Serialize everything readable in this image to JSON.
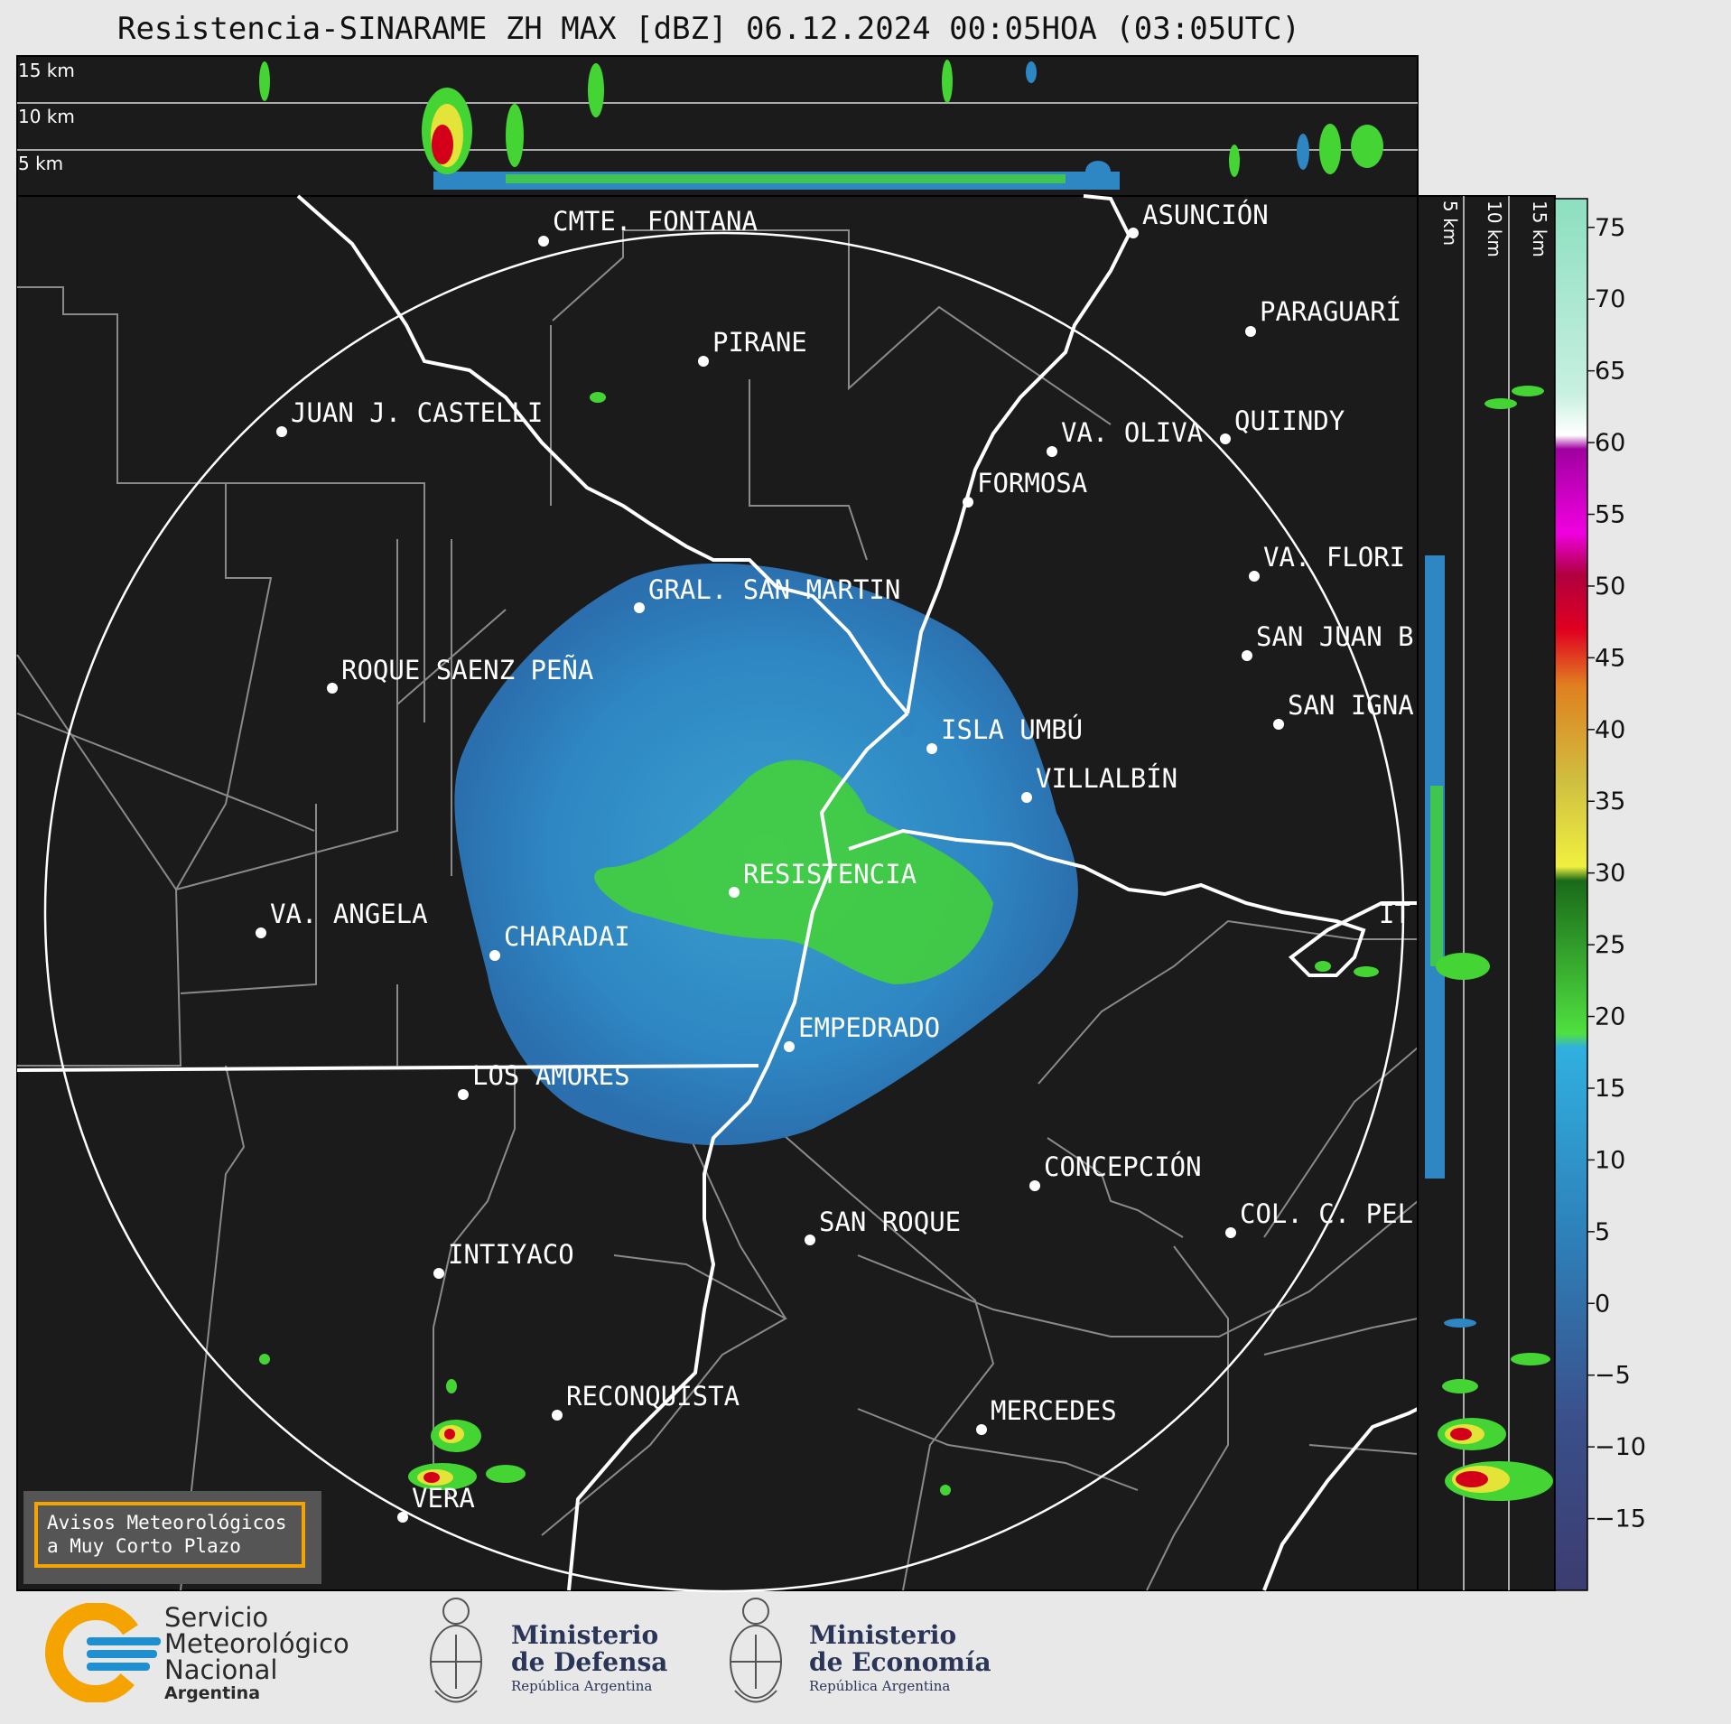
{
  "title": "Resistencia-SINARAME ZH MAX [dBZ] 06.12.2024 00:05HOA (03:05UTC)",
  "top_profile": {
    "altitude_labels": [
      "15 km",
      "10 km",
      "5 km"
    ]
  },
  "side_profile": {
    "altitude_labels": [
      "5 km",
      "10 km",
      "15 km"
    ]
  },
  "colorbar": {
    "unit": "dBZ",
    "ticks": [
      "75",
      "70",
      "65",
      "60",
      "55",
      "50",
      "45",
      "40",
      "35",
      "30",
      "25",
      "20",
      "15",
      "10",
      "5",
      "0",
      "−5",
      "−10",
      "−15"
    ],
    "range": [
      -20,
      77
    ]
  },
  "cities": [
    {
      "name": "CMTE. FONTANA"
    },
    {
      "name": "ASUNCIÓN"
    },
    {
      "name": "PARAGUARÍ"
    },
    {
      "name": "PIRANE"
    },
    {
      "name": "JUAN J. CASTELLI"
    },
    {
      "name": "VA. OLIVA"
    },
    {
      "name": "QUIINDY"
    },
    {
      "name": "FORMOSA"
    },
    {
      "name": "VA. FLORI"
    },
    {
      "name": "GRAL. SAN MARTIN"
    },
    {
      "name": "SAN JUAN B"
    },
    {
      "name": "ROQUE SAENZ PEÑA"
    },
    {
      "name": "SAN IGNA"
    },
    {
      "name": "ISLA UMBÚ"
    },
    {
      "name": "VILLALBÍN"
    },
    {
      "name": "RESISTENCIA"
    },
    {
      "name": "IT"
    },
    {
      "name": "VA. ANGELA"
    },
    {
      "name": "CHARADAI"
    },
    {
      "name": "EMPEDRADO"
    },
    {
      "name": "LOS AMORES"
    },
    {
      "name": "CONCEPCIÓN"
    },
    {
      "name": "SAN ROQUE"
    },
    {
      "name": "COL. C. PEL"
    },
    {
      "name": "INTIYACO"
    },
    {
      "name": "RECONQUISTA"
    },
    {
      "name": "MERCEDES"
    },
    {
      "name": "VERA"
    }
  ],
  "notice": {
    "line1": "Avisos Meteorológicos",
    "line2": "a Muy Corto Plazo"
  },
  "logos": {
    "smn": {
      "line1": "Servicio",
      "line2": "Meteorológico",
      "line3": "Nacional",
      "line4": "Argentina"
    },
    "defensa": {
      "line1": "Ministerio",
      "line2": "de Defensa",
      "line3": "República Argentina"
    },
    "economia": {
      "line1": "Ministerio",
      "line2": "de Economía",
      "line3": "República Argentina"
    }
  },
  "colors": {
    "map_bg": "#1b1b1b",
    "echo_light": "#2e8fc9",
    "echo_green": "#44d433",
    "echo_yellow": "#e3e338",
    "echo_red": "#d4001a",
    "smn_orange": "#f5a300",
    "smn_blue": "#1e8fd0"
  }
}
